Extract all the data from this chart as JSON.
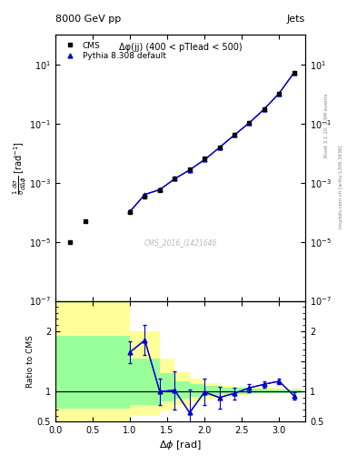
{
  "title_top": "8000 GeV pp",
  "title_right": "Jets",
  "annotation": "Δφ(jj) (400 < pTlead < 500)",
  "watermark": "CMS_2016_I1421646",
  "rivet_text": "Rivet 3.1.10, 2.9M events",
  "inspire_text": "mcplots.cern.ch [arXiv:1306.3436]",
  "ylabel_main": "$\\frac{1}{\\sigma}\\frac{d\\sigma}{d\\Delta\\phi}$ [rad$^{-1}$]",
  "ylabel_ratio": "Ratio to CMS",
  "xlabel": "$\\Delta\\phi$ [rad]",
  "cms_x": [
    0.2,
    0.4,
    1.0,
    1.2,
    1.4,
    1.6,
    1.8,
    2.0,
    2.2,
    2.4,
    2.6,
    2.8,
    3.0,
    3.2
  ],
  "cms_y": [
    1e-05,
    5e-05,
    0.0001,
    0.00035,
    0.00055,
    0.0014,
    0.0028,
    0.0065,
    0.016,
    0.042,
    0.105,
    0.31,
    1.05,
    5.2
  ],
  "pythia_x": [
    1.0,
    1.2,
    1.4,
    1.6,
    1.8,
    2.0,
    2.2,
    2.4,
    2.6,
    2.8,
    3.0,
    3.2
  ],
  "pythia_y": [
    0.000105,
    0.0004,
    0.00058,
    0.00135,
    0.0027,
    0.006,
    0.0155,
    0.041,
    0.106,
    0.31,
    1.06,
    5.3
  ],
  "pythia_yerr": [
    8e-06,
    2e-05,
    3e-05,
    7e-05,
    0.00012,
    0.00025,
    0.0007,
    0.0018,
    0.0045,
    0.012,
    0.035,
    0.18
  ],
  "ratio_x": [
    1.0,
    1.2,
    1.4,
    1.6,
    1.8,
    2.0,
    2.2,
    2.4,
    2.6,
    2.8,
    3.0,
    3.2
  ],
  "ratio_y": [
    1.65,
    1.85,
    1.0,
    1.02,
    0.65,
    0.99,
    0.9,
    0.97,
    1.06,
    1.12,
    1.17,
    0.93
  ],
  "ratio_yerr": [
    0.18,
    0.25,
    0.22,
    0.32,
    0.38,
    0.22,
    0.18,
    0.1,
    0.07,
    0.05,
    0.05,
    0.06
  ],
  "band_yellow_edges": [
    0.0,
    0.4,
    1.0,
    1.4,
    1.6,
    1.8,
    2.0,
    2.2,
    2.4,
    2.6,
    2.8,
    3.0,
    3.2,
    3.3
  ],
  "band_yellow_lo": [
    0.5,
    0.5,
    0.6,
    0.68,
    0.78,
    0.83,
    0.88,
    0.92,
    0.94,
    0.95,
    0.96,
    0.97,
    0.97
  ],
  "band_yellow_hi": [
    2.5,
    2.5,
    2.0,
    1.55,
    1.32,
    1.22,
    1.14,
    1.1,
    1.08,
    1.07,
    1.06,
    1.05,
    1.05
  ],
  "band_green_lo": [
    0.72,
    0.72,
    0.78,
    0.83,
    0.88,
    0.91,
    0.93,
    0.95,
    0.96,
    0.97,
    0.97,
    0.97,
    0.97
  ],
  "band_green_hi": [
    1.92,
    1.92,
    1.55,
    1.3,
    1.17,
    1.12,
    1.09,
    1.07,
    1.06,
    1.05,
    1.04,
    1.04,
    1.04
  ],
  "cms_color": "#000000",
  "pythia_color": "#0000cc",
  "band_yellow_color": "#ffff99",
  "band_green_color": "#99ff99"
}
